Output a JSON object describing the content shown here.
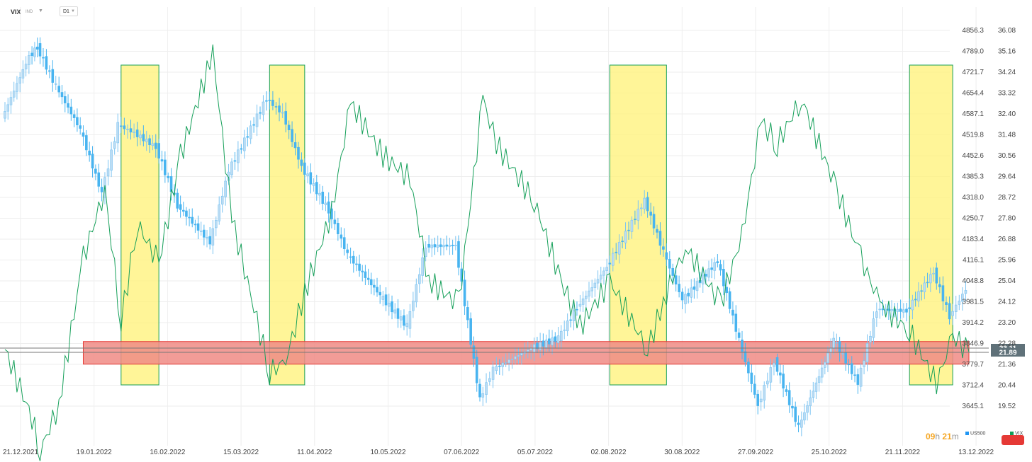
{
  "toolbar": {
    "symbol": "VIX",
    "market": "IND",
    "interval": "D1"
  },
  "legend": [
    {
      "name": "US500",
      "color": "#2196f3"
    },
    {
      "name": "VIX",
      "color": "#0f9d58"
    }
  ],
  "timer": {
    "hours": "09",
    "minutes": "21",
    "h_unit": "h",
    "m_unit": "m"
  },
  "colors": {
    "up": "#bcdcf3",
    "down": "#48b4f0",
    "vix_line": "#16a05a",
    "highlight_fill": "#fff176",
    "highlight_border": "#16a05a",
    "band_fill": "#f08b85",
    "band_border": "#e53935",
    "grid": "#eeeeee",
    "last_label": "#5f7179"
  },
  "chart_data": {
    "type": "line",
    "x_axis_ticks": [
      "21.12.2021",
      "19.01.2022",
      "16.02.2022",
      "15.03.2022",
      "11.04.2022",
      "10.05.2022",
      "07.06.2022",
      "05.07.2022",
      "02.08.2022",
      "30.08.2022",
      "27.09.2022",
      "25.10.2022",
      "21.11.2022",
      "13.12.2022"
    ],
    "y_left_ticks": [
      "4856.3",
      "4789.0",
      "4721.7",
      "4654.4",
      "4587.1",
      "4519.8",
      "4452.6",
      "4385.3",
      "4318.0",
      "4250.7",
      "4183.4",
      "4116.1",
      "4048.8",
      "3981.5",
      "3914.2",
      "3846.9",
      "3779.7",
      "3712.4",
      "3645.1"
    ],
    "y_right_ticks": [
      "36.08",
      "35.16",
      "34.24",
      "33.32",
      "32.40",
      "31.48",
      "30.56",
      "29.64",
      "28.72",
      "27.80",
      "26.88",
      "25.96",
      "25.04",
      "24.12",
      "23.20",
      "22.28",
      "21.36",
      "20.44",
      "19.52"
    ],
    "us500_range": [
      3577.8,
      4923.6
    ],
    "vix_range": [
      18.6,
      37.0
    ],
    "last_value_labels": [
      "23.11",
      "21.89"
    ],
    "series": [
      {
        "name": "US500",
        "kind": "candlestick",
        "x": [
          "2021-12-21",
          "2021-12-31",
          "2022-01-03",
          "2022-01-10",
          "2022-01-19",
          "2022-01-27",
          "2022-02-02",
          "2022-02-08",
          "2022-02-16",
          "2022-02-24",
          "2022-03-08",
          "2022-03-15",
          "2022-03-29",
          "2022-04-04",
          "2022-04-11",
          "2022-04-21",
          "2022-04-28",
          "2022-05-10",
          "2022-05-20",
          "2022-05-27",
          "2022-06-07",
          "2022-06-16",
          "2022-06-21",
          "2022-07-05",
          "2022-07-15",
          "2022-07-22",
          "2022-08-02",
          "2022-08-16",
          "2022-08-23",
          "2022-08-30",
          "2022-09-12",
          "2022-09-20",
          "2022-09-27",
          "2022-10-03",
          "2022-10-12",
          "2022-10-25",
          "2022-11-03",
          "2022-11-10",
          "2022-11-21",
          "2022-12-01",
          "2022-12-07",
          "2022-12-13"
        ],
        "close": [
          4568,
          4766,
          4796,
          4670,
          4532,
          4326,
          4546,
          4521,
          4475,
          4288,
          4170,
          4400,
          4631,
          4582,
          4412,
          4272,
          4131,
          4000,
          3901,
          4158,
          4160,
          3666,
          3764,
          3831,
          3863,
          3961,
          4091,
          4305,
          4140,
          3985,
          4110,
          3856,
          3647,
          3790,
          3577,
          3859,
          3720,
          3956,
          3950,
          4076,
          3933,
          4019
        ]
      },
      {
        "name": "VIX",
        "kind": "line",
        "x": [
          "2021-12-21",
          "2021-12-31",
          "2022-01-03",
          "2022-01-10",
          "2022-01-19",
          "2022-01-27",
          "2022-02-02",
          "2022-02-08",
          "2022-02-16",
          "2022-02-24",
          "2022-03-08",
          "2022-03-15",
          "2022-03-29",
          "2022-04-04",
          "2022-04-11",
          "2022-04-21",
          "2022-04-28",
          "2022-05-10",
          "2022-05-20",
          "2022-05-27",
          "2022-06-07",
          "2022-06-16",
          "2022-06-21",
          "2022-07-05",
          "2022-07-15",
          "2022-07-22",
          "2022-08-02",
          "2022-08-16",
          "2022-08-23",
          "2022-08-30",
          "2022-09-12",
          "2022-09-20",
          "2022-09-27",
          "2022-10-03",
          "2022-10-12",
          "2022-10-25",
          "2022-11-03",
          "2022-11-10",
          "2022-11-21",
          "2022-12-01",
          "2022-12-07",
          "2022-12-13"
        ],
        "values": [
          22.0,
          19.0,
          17.5,
          19.6,
          26.0,
          29.0,
          23.2,
          27.5,
          25.8,
          30.5,
          35.0,
          27.8,
          21.0,
          21.5,
          24.5,
          28.0,
          32.8,
          30.5,
          29.5,
          25.0,
          24.0,
          33.0,
          31.0,
          28.5,
          25.0,
          23.0,
          25.0,
          22.0,
          24.5,
          26.5,
          24.0,
          27.0,
          32.0,
          31.0,
          33.0,
          29.0,
          26.0,
          24.0,
          22.8,
          20.5,
          22.6,
          21.89
        ]
      }
    ],
    "highlight_periods": [
      {
        "from": "2022-02-02",
        "to": "2022-02-16",
        "kind": "highlight"
      },
      {
        "from": "2022-03-29",
        "to": "2022-04-11",
        "kind": "highlight"
      },
      {
        "from": "2022-08-02",
        "to": "2022-08-23",
        "kind": "highlight"
      },
      {
        "from": "2022-11-21",
        "to": "2022-12-07",
        "kind": "highlight"
      }
    ],
    "support_band": {
      "from": "2022-01-19",
      "to": "2022-12-13",
      "low": 21.36,
      "high": 22.35,
      "kind": "support_band"
    }
  }
}
